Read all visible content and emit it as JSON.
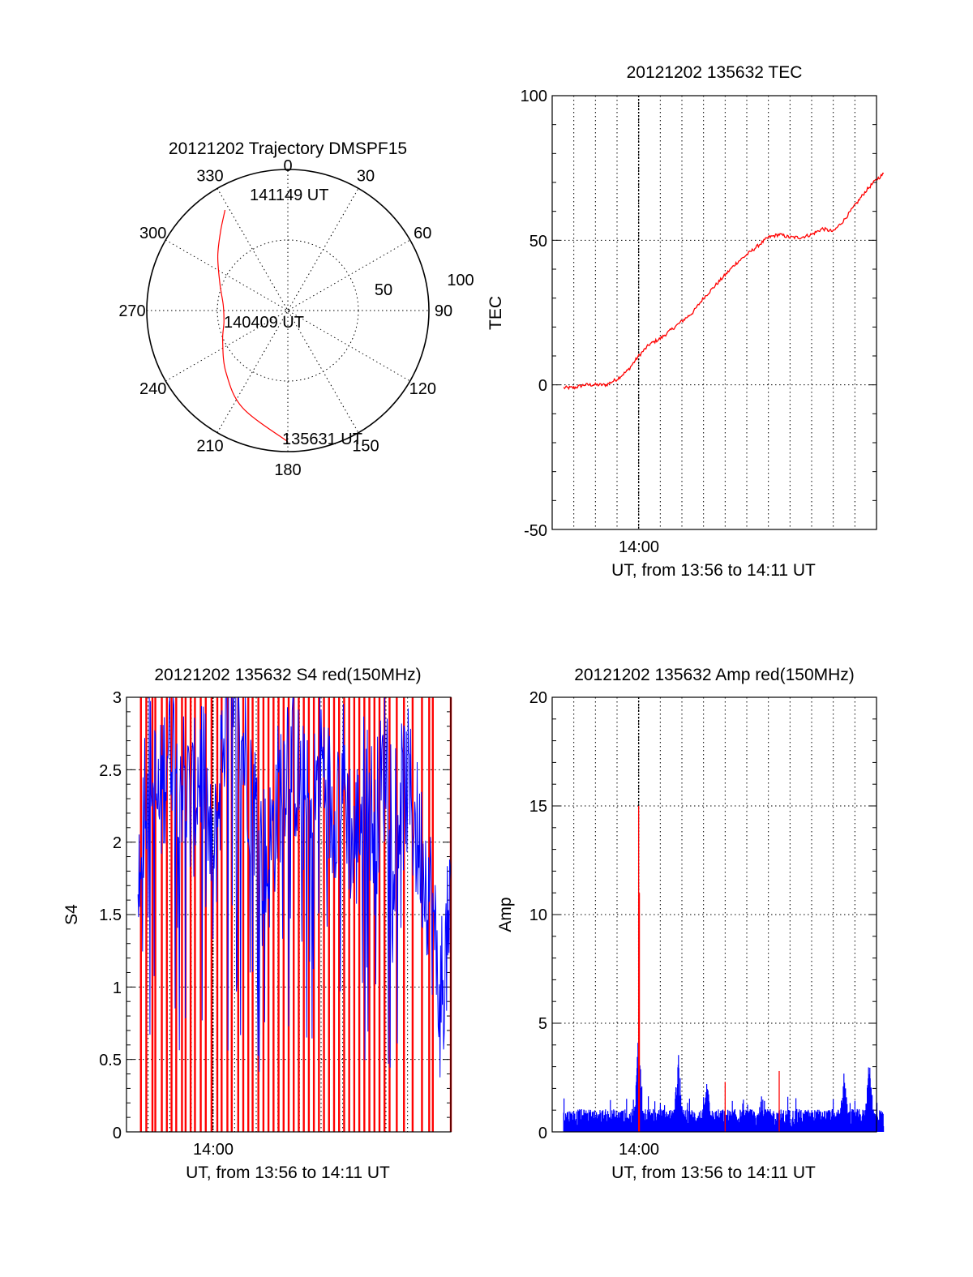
{
  "colors": {
    "red": "#ff0000",
    "blue": "#0000ff",
    "axis": "#000000"
  },
  "chart_data": [
    {
      "type": "polar",
      "title": "20121202 Trajectory DMSPF15",
      "angle_labels": [
        "0",
        "30",
        "60",
        "90",
        "120",
        "150",
        "180",
        "210",
        "240",
        "270",
        "300",
        "330"
      ],
      "radial_labels": [
        "50",
        "100"
      ],
      "rlim": [
        0,
        100
      ],
      "series": [
        {
          "color": "#ff0000",
          "points": [
            {
              "az": 180,
              "r": 93
            },
            {
              "az": 205,
              "r": 76
            },
            {
              "az": 225,
              "r": 62
            },
            {
              "az": 245,
              "r": 51
            },
            {
              "az": 260,
              "r": 46
            },
            {
              "az": 275,
              "r": 46
            },
            {
              "az": 292,
              "r": 52
            },
            {
              "az": 308,
              "r": 63
            },
            {
              "az": 320,
              "r": 74
            },
            {
              "az": 328,
              "r": 84
            }
          ]
        }
      ],
      "annotations": [
        {
          "text": "141149 UT",
          "az": 342,
          "r": 79
        },
        {
          "text": "140409 UT",
          "az": 265,
          "r": 7
        },
        {
          "text": "135631 UT",
          "az": 174,
          "r": 90
        }
      ]
    },
    {
      "type": "line",
      "title": "20121202 135632 TEC",
      "xlabel": "UT, from 13:56 to 14:11 UT",
      "ylabel": "TEC",
      "xlim": [
        "13:56",
        "14:11"
      ],
      "x_ticks": [
        "14:00"
      ],
      "ylim": [
        -50,
        100
      ],
      "y_ticks": [
        "100",
        "50",
        "0",
        "-50"
      ],
      "grid": true,
      "series": [
        {
          "color": "#ff0000",
          "x": [
            "13:56:32",
            "13:57:00",
            "13:57:30",
            "13:58:00",
            "13:58:30",
            "13:59:00",
            "13:59:30",
            "14:00:00",
            "14:00:30",
            "14:01:00",
            "14:01:30",
            "14:02:00",
            "14:02:30",
            "14:03:00",
            "14:03:30",
            "14:04:00",
            "14:04:30",
            "14:05:00",
            "14:05:30",
            "14:06:00",
            "14:06:30",
            "14:07:00",
            "14:07:30",
            "14:08:00",
            "14:08:30",
            "14:09:00",
            "14:09:30",
            "14:10:00",
            "14:10:30",
            "14:11:00",
            "14:11:30"
          ],
          "y": [
            -1,
            -1,
            0,
            0,
            0,
            2,
            5,
            10,
            14,
            16,
            19,
            22,
            25,
            30,
            34,
            38,
            42,
            45,
            48,
            51,
            52,
            51,
            51,
            52,
            54,
            53,
            57,
            62,
            67,
            71,
            74
          ]
        }
      ]
    },
    {
      "type": "line",
      "title": "20121202 135632 S4 red(150MHz)",
      "xlabel": "UT, from 13:56 to 14:11 UT",
      "ylabel": "S4",
      "xlim": [
        "13:56",
        "14:11"
      ],
      "x_ticks": [
        "14:00"
      ],
      "ylim": [
        0,
        3
      ],
      "y_ticks": [
        "3",
        "2.5",
        "2",
        "1.5",
        "1",
        "0.5",
        "0"
      ],
      "grid": true,
      "series": [
        {
          "color": "#0000ff",
          "x": [
            "13:56:32",
            "13:57:00",
            "13:57:30",
            "13:58:00",
            "13:58:30",
            "13:59:00",
            "13:59:30",
            "14:00:00",
            "14:00:30",
            "14:01:00",
            "14:01:30",
            "14:02:00",
            "14:02:30",
            "14:03:00",
            "14:03:30",
            "14:04:00",
            "14:04:30",
            "14:05:00",
            "14:05:30",
            "14:06:00",
            "14:06:30",
            "14:07:00",
            "14:07:30",
            "14:08:00",
            "14:08:30",
            "14:09:00",
            "14:09:30",
            "14:10:00",
            "14:10:30",
            "14:11:00",
            "14:11:30"
          ],
          "y": [
            1.9,
            2.6,
            2.2,
            2.8,
            2.5,
            2.2,
            2.6,
            1.7,
            2.8,
            2.9,
            2.6,
            2.2,
            1.8,
            2.3,
            2.7,
            2.4,
            2.1,
            2.6,
            2.2,
            2.5,
            1.9,
            2.4,
            2.1,
            2.6,
            2.2,
            2.4,
            2.0,
            1.7,
            0.9,
            1.5,
            1.8
          ]
        }
      ],
      "red_bars_x": [
        "13:56:40",
        "13:56:55",
        "13:57:12",
        "13:57:20",
        "13:57:38",
        "13:57:52",
        "13:58:05",
        "13:58:18",
        "13:58:34",
        "13:58:44",
        "13:58:58",
        "13:59:10",
        "13:59:26",
        "13:59:40",
        "13:59:56",
        "14:00:12",
        "14:00:24",
        "14:00:40",
        "14:00:52",
        "14:01:10",
        "14:01:24",
        "14:01:38",
        "14:01:50",
        "14:02:06",
        "14:02:20",
        "14:02:34",
        "14:02:48",
        "14:03:02",
        "14:03:16",
        "14:03:30",
        "14:03:44",
        "14:03:58",
        "14:04:12",
        "14:04:26",
        "14:04:40",
        "14:04:54",
        "14:05:08",
        "14:05:22",
        "14:05:36",
        "14:05:50",
        "14:06:04",
        "14:06:18",
        "14:06:32",
        "14:06:46",
        "14:07:00",
        "14:07:14",
        "14:07:28",
        "14:07:42",
        "14:07:56",
        "14:08:10",
        "14:08:30",
        "14:08:50",
        "14:09:14",
        "14:09:40",
        "14:10:00",
        "14:10:10",
        "14:11:00"
      ]
    },
    {
      "type": "line",
      "title": "20121202 135632 Amp red(150MHz)",
      "xlabel": "UT, from 13:56 to 14:11 UT",
      "ylabel": "Amp",
      "xlim": [
        "13:56",
        "14:11"
      ],
      "x_ticks": [
        "14:00"
      ],
      "ylim": [
        0,
        20
      ],
      "y_ticks": [
        "20",
        "15",
        "10",
        "5",
        "0"
      ],
      "grid": true,
      "series": [
        {
          "color": "#0000ff",
          "baseline_mean": 0.7,
          "baseline_max": 1.5,
          "spikes": [
            {
              "x": "14:00:00",
              "y": 5.0
            },
            {
              "x": "14:01:50",
              "y": 3.7
            },
            {
              "x": "14:03:10",
              "y": 2.4
            },
            {
              "x": "14:05:40",
              "y": 1.8
            },
            {
              "x": "14:09:30",
              "y": 2.8
            },
            {
              "x": "14:10:40",
              "y": 3.4
            }
          ]
        },
        {
          "color": "#ff0000",
          "spikes": [
            {
              "x": "14:00:00",
              "y": 15.0
            },
            {
              "x": "14:00:02",
              "y": 11.0
            },
            {
              "x": "14:04:00",
              "y": 2.3
            },
            {
              "x": "14:06:30",
              "y": 2.8
            }
          ]
        }
      ]
    }
  ]
}
